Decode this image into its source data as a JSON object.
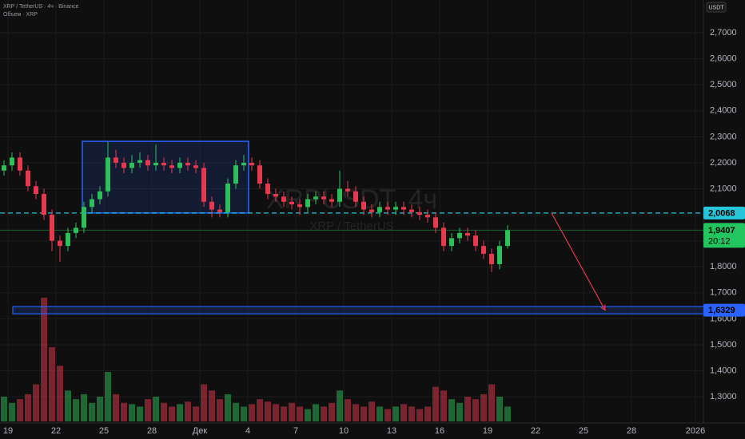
{
  "chart_data": {
    "type": "candlestick",
    "title": "XRP / TetherUS · 4ч · Binance",
    "volume_label": "Объем · XRP",
    "watermark": "XRPUSDT, 4ч",
    "watermark_subtitle": "XRP / TetherUS",
    "currency": "USDT",
    "up_color": "#2fbf5a",
    "down_color": "#e53950",
    "open": [
      2.17,
      2.19,
      2.22,
      2.17,
      2.11,
      2.08,
      2.0,
      1.9,
      1.88,
      1.93,
      1.95,
      2.03,
      2.06,
      2.09,
      2.22,
      2.2,
      2.18,
      2.2,
      2.21,
      2.19,
      2.2,
      2.19,
      2.18,
      2.2,
      2.19,
      2.18,
      2.05,
      2.02,
      2.01,
      2.12,
      2.19,
      2.2,
      2.19,
      2.12,
      2.08,
      2.07,
      2.05,
      2.04,
      2.03,
      2.06,
      2.07,
      2.06,
      2.05,
      2.1,
      2.09,
      2.05,
      2.02,
      2.01,
      2.03,
      2.02,
      2.03,
      2.02,
      2.01,
      2.0,
      1.99,
      1.95,
      1.88,
      1.91,
      1.93,
      1.92,
      1.88,
      1.85,
      1.81,
      1.88
    ],
    "high": [
      2.21,
      2.24,
      2.24,
      2.19,
      2.13,
      2.1,
      2.02,
      1.92,
      1.95,
      1.97,
      2.05,
      2.08,
      2.11,
      2.28,
      2.25,
      2.22,
      2.23,
      2.24,
      2.23,
      2.27,
      2.22,
      2.21,
      2.22,
      2.22,
      2.21,
      2.2,
      2.07,
      2.04,
      2.14,
      2.21,
      2.23,
      2.22,
      2.21,
      2.14,
      2.1,
      2.09,
      2.07,
      2.06,
      2.08,
      2.09,
      2.09,
      2.08,
      2.17,
      2.13,
      2.11,
      2.07,
      2.04,
      2.05,
      2.05,
      2.05,
      2.05,
      2.04,
      2.03,
      2.02,
      2.01,
      1.97,
      1.93,
      1.95,
      1.95,
      1.94,
      1.9,
      1.87,
      1.9,
      1.96
    ],
    "low": [
      2.15,
      2.17,
      2.15,
      2.09,
      2.06,
      1.98,
      1.86,
      1.82,
      1.86,
      1.91,
      1.93,
      2.01,
      2.04,
      2.07,
      2.18,
      2.16,
      2.16,
      2.18,
      2.17,
      2.17,
      2.17,
      2.16,
      2.16,
      2.17,
      2.16,
      2.03,
      1.99,
      1.99,
      1.99,
      2.1,
      2.17,
      2.17,
      2.1,
      2.06,
      2.05,
      2.03,
      2.02,
      2.0,
      2.01,
      2.04,
      2.04,
      2.03,
      2.03,
      2.07,
      2.03,
      2.0,
      1.99,
      1.99,
      2.0,
      2.0,
      2.0,
      1.99,
      1.98,
      1.97,
      1.93,
      1.86,
      1.86,
      1.89,
      1.9,
      1.86,
      1.83,
      1.78,
      1.79,
      1.87
    ],
    "close": [
      2.19,
      2.22,
      2.17,
      2.11,
      2.08,
      2.0,
      1.9,
      1.88,
      1.93,
      1.95,
      2.03,
      2.06,
      2.09,
      2.22,
      2.2,
      2.18,
      2.2,
      2.21,
      2.19,
      2.2,
      2.19,
      2.18,
      2.2,
      2.19,
      2.18,
      2.05,
      2.02,
      2.01,
      2.12,
      2.19,
      2.2,
      2.19,
      2.12,
      2.08,
      2.07,
      2.05,
      2.04,
      2.03,
      2.06,
      2.07,
      2.06,
      2.05,
      2.1,
      2.09,
      2.05,
      2.02,
      2.01,
      2.03,
      2.02,
      2.03,
      2.02,
      2.01,
      2.0,
      1.99,
      1.95,
      1.88,
      1.91,
      1.93,
      1.92,
      1.88,
      1.85,
      1.81,
      1.88,
      1.9407
    ],
    "volume": [
      20,
      15,
      18,
      22,
      30,
      100,
      60,
      45,
      25,
      18,
      22,
      15,
      20,
      40,
      22,
      15,
      14,
      12,
      18,
      20,
      15,
      12,
      14,
      16,
      12,
      30,
      25,
      18,
      22,
      15,
      12,
      14,
      18,
      16,
      14,
      12,
      15,
      12,
      10,
      14,
      12,
      15,
      25,
      18,
      14,
      12,
      16,
      12,
      10,
      12,
      14,
      12,
      10,
      12,
      28,
      25,
      18,
      15,
      20,
      18,
      22,
      30,
      20,
      12
    ],
    "ylim": [
      1.199,
      2.826
    ],
    "yticks": [
      {
        "value": 1.3,
        "label": "1,3000"
      },
      {
        "value": 1.4,
        "label": "1,4000"
      },
      {
        "value": 1.5,
        "label": "1,5000"
      },
      {
        "value": 1.6,
        "label": "1,6000"
      },
      {
        "value": 1.7,
        "label": "1,7000"
      },
      {
        "value": 1.8,
        "label": "1,8000"
      },
      {
        "value": 1.9,
        "label": "1,9000"
      },
      {
        "value": 2.0,
        "label": "2,0000"
      },
      {
        "value": 2.1,
        "label": "2,1000"
      },
      {
        "value": 2.2,
        "label": "2,2000"
      },
      {
        "value": 2.3,
        "label": "2,3000"
      },
      {
        "value": 2.4,
        "label": "2,4000"
      },
      {
        "value": 2.5,
        "label": "2,5000"
      },
      {
        "value": 2.6,
        "label": "2,6000"
      },
      {
        "value": 2.7,
        "label": "2,7000"
      }
    ],
    "xticks": [
      {
        "value": 0.5,
        "label": "19"
      },
      {
        "value": 6.5,
        "label": "22"
      },
      {
        "value": 12.5,
        "label": "25"
      },
      {
        "value": 18.5,
        "label": "28"
      },
      {
        "value": 24.5,
        "label": "Дек"
      },
      {
        "value": 30.5,
        "label": "4"
      },
      {
        "value": 36.5,
        "label": "7"
      },
      {
        "value": 42.5,
        "label": "10"
      },
      {
        "value": 48.5,
        "label": "13"
      },
      {
        "value": 54.5,
        "label": "16"
      },
      {
        "value": 60.5,
        "label": "19"
      },
      {
        "value": 66.5,
        "label": "22"
      },
      {
        "value": 72.5,
        "label": "25"
      },
      {
        "value": 78.5,
        "label": "28"
      },
      {
        "value": 86.5,
        "label": "2026"
      }
    ],
    "levels": [
      {
        "value": 2.0068,
        "label": "2,0068",
        "color": "#26c6da",
        "style": "dashed"
      },
      {
        "value": 1.6329,
        "label": "1,6329",
        "color": "#2962ff",
        "style": "zone"
      }
    ],
    "last_price": {
      "value": 1.9407,
      "label": "1,9407",
      "countdown": "20:12",
      "color": "#22c55e"
    },
    "box": {
      "x": [
        9.8,
        30.6
      ],
      "y": [
        2.0068,
        2.2825
      ],
      "color": "#2962ff"
    },
    "arrow": {
      "x": [
        68.5,
        75.2
      ],
      "y": [
        2.0068,
        1.6329
      ],
      "color": "#e53950"
    }
  }
}
